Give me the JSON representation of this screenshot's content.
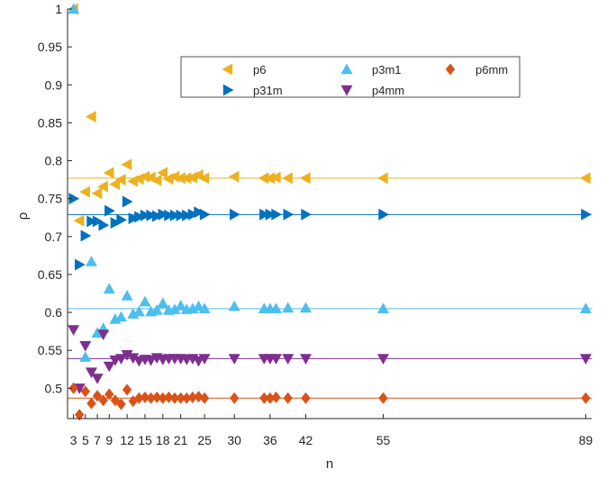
{
  "chart_data": {
    "type": "scatter",
    "xlabel": "n",
    "ylabel": "ρ",
    "xlim": [
      2,
      90
    ],
    "ylim": [
      0.46,
      1.0
    ],
    "xticks": [
      3,
      5,
      7,
      9,
      12,
      15,
      18,
      21,
      25,
      30,
      36,
      42,
      55,
      89
    ],
    "yticks": [
      0.5,
      0.55,
      0.6,
      0.65,
      0.7,
      0.75,
      0.8,
      0.85,
      0.9,
      0.95,
      1
    ],
    "ytick_labels": [
      "0.5",
      "0.55",
      "0.6",
      "0.65",
      "0.7",
      "0.75",
      "0.8",
      "0.85",
      "0.9",
      "0.95",
      "1"
    ],
    "grid": false,
    "legend_position": "top-center",
    "series": [
      {
        "name": "p6",
        "color": "#EDB120",
        "marker": "triangle-left",
        "reference": 0.777,
        "points": [
          [
            3,
            1.0
          ],
          [
            4,
            0.721
          ],
          [
            5,
            0.759
          ],
          [
            6,
            0.858
          ],
          [
            7,
            0.757
          ],
          [
            8,
            0.766
          ],
          [
            9,
            0.784
          ],
          [
            10,
            0.769
          ],
          [
            11,
            0.775
          ],
          [
            12,
            0.795
          ],
          [
            13,
            0.773
          ],
          [
            14,
            0.776
          ],
          [
            15,
            0.779
          ],
          [
            16,
            0.778
          ],
          [
            17,
            0.774
          ],
          [
            18,
            0.784
          ],
          [
            19,
            0.776
          ],
          [
            20,
            0.779
          ],
          [
            21,
            0.777
          ],
          [
            22,
            0.777
          ],
          [
            23,
            0.778
          ],
          [
            24,
            0.781
          ],
          [
            25,
            0.777
          ],
          [
            30,
            0.779
          ],
          [
            35,
            0.777
          ],
          [
            36,
            0.777
          ],
          [
            37,
            0.778
          ],
          [
            39,
            0.777
          ],
          [
            42,
            0.777
          ],
          [
            55,
            0.777
          ],
          [
            89,
            0.777
          ]
        ]
      },
      {
        "name": "p31m",
        "color": "#0072BD",
        "marker": "triangle-right",
        "reference": 0.729,
        "points": [
          [
            3,
            0.75
          ],
          [
            4,
            0.663
          ],
          [
            5,
            0.701
          ],
          [
            6,
            0.72
          ],
          [
            7,
            0.72
          ],
          [
            8,
            0.715
          ],
          [
            9,
            0.734
          ],
          [
            10,
            0.718
          ],
          [
            11,
            0.722
          ],
          [
            12,
            0.746
          ],
          [
            13,
            0.724
          ],
          [
            14,
            0.726
          ],
          [
            15,
            0.728
          ],
          [
            16,
            0.728
          ],
          [
            17,
            0.727
          ],
          [
            18,
            0.729
          ],
          [
            19,
            0.728
          ],
          [
            20,
            0.728
          ],
          [
            21,
            0.728
          ],
          [
            22,
            0.728
          ],
          [
            23,
            0.729
          ],
          [
            24,
            0.732
          ],
          [
            25,
            0.729
          ],
          [
            30,
            0.729
          ],
          [
            35,
            0.729
          ],
          [
            36,
            0.729
          ],
          [
            37,
            0.729
          ],
          [
            39,
            0.729
          ],
          [
            42,
            0.729
          ],
          [
            55,
            0.729
          ],
          [
            89,
            0.729
          ]
        ]
      },
      {
        "name": "p3m1",
        "color": "#4DBEEE",
        "marker": "triangle-up",
        "reference": 0.605,
        "points": [
          [
            3,
            1.0
          ],
          [
            5,
            0.541
          ],
          [
            6,
            0.667
          ],
          [
            7,
            0.573
          ],
          [
            8,
            0.579
          ],
          [
            9,
            0.631
          ],
          [
            10,
            0.591
          ],
          [
            11,
            0.594
          ],
          [
            12,
            0.622
          ],
          [
            13,
            0.598
          ],
          [
            14,
            0.601
          ],
          [
            15,
            0.614
          ],
          [
            16,
            0.601
          ],
          [
            17,
            0.603
          ],
          [
            18,
            0.612
          ],
          [
            19,
            0.603
          ],
          [
            20,
            0.604
          ],
          [
            21,
            0.609
          ],
          [
            22,
            0.604
          ],
          [
            23,
            0.605
          ],
          [
            24,
            0.608
          ],
          [
            25,
            0.605
          ],
          [
            30,
            0.608
          ],
          [
            35,
            0.605
          ],
          [
            36,
            0.605
          ],
          [
            37,
            0.605
          ],
          [
            39,
            0.606
          ],
          [
            42,
            0.606
          ],
          [
            55,
            0.605
          ],
          [
            89,
            0.605
          ]
        ]
      },
      {
        "name": "p4mm",
        "color": "#7E2F8E",
        "marker": "triangle-down",
        "reference": 0.539,
        "points": [
          [
            3,
            0.577
          ],
          [
            4,
            0.5
          ],
          [
            5,
            0.556
          ],
          [
            6,
            0.521
          ],
          [
            7,
            0.513
          ],
          [
            8,
            0.571
          ],
          [
            9,
            0.529
          ],
          [
            10,
            0.537
          ],
          [
            11,
            0.539
          ],
          [
            12,
            0.544
          ],
          [
            13,
            0.54
          ],
          [
            14,
            0.536
          ],
          [
            15,
            0.538
          ],
          [
            16,
            0.537
          ],
          [
            17,
            0.54
          ],
          [
            18,
            0.538
          ],
          [
            19,
            0.539
          ],
          [
            20,
            0.539
          ],
          [
            21,
            0.539
          ],
          [
            22,
            0.538
          ],
          [
            23,
            0.539
          ],
          [
            24,
            0.536
          ],
          [
            25,
            0.539
          ],
          [
            30,
            0.539
          ],
          [
            35,
            0.539
          ],
          [
            36,
            0.539
          ],
          [
            37,
            0.539
          ],
          [
            39,
            0.539
          ],
          [
            42,
            0.539
          ],
          [
            55,
            0.539
          ],
          [
            89,
            0.539
          ]
        ]
      },
      {
        "name": "p6mm",
        "color": "#D95319",
        "marker": "diamond",
        "reference": 0.487,
        "points": [
          [
            3,
            0.5
          ],
          [
            4,
            0.465
          ],
          [
            5,
            0.496
          ],
          [
            6,
            0.48
          ],
          [
            7,
            0.49
          ],
          [
            8,
            0.484
          ],
          [
            9,
            0.492
          ],
          [
            10,
            0.484
          ],
          [
            11,
            0.479
          ],
          [
            12,
            0.498
          ],
          [
            13,
            0.483
          ],
          [
            14,
            0.487
          ],
          [
            15,
            0.488
          ],
          [
            16,
            0.487
          ],
          [
            17,
            0.488
          ],
          [
            18,
            0.487
          ],
          [
            19,
            0.488
          ],
          [
            20,
            0.487
          ],
          [
            21,
            0.487
          ],
          [
            22,
            0.487
          ],
          [
            23,
            0.488
          ],
          [
            24,
            0.489
          ],
          [
            25,
            0.487
          ],
          [
            30,
            0.487
          ],
          [
            35,
            0.487
          ],
          [
            36,
            0.487
          ],
          [
            37,
            0.488
          ],
          [
            39,
            0.487
          ],
          [
            42,
            0.487
          ],
          [
            55,
            0.487
          ],
          [
            89,
            0.487
          ]
        ]
      }
    ],
    "legend_order": [
      "p6",
      "p3m1",
      "p6mm",
      "p31m",
      "p4mm"
    ]
  }
}
